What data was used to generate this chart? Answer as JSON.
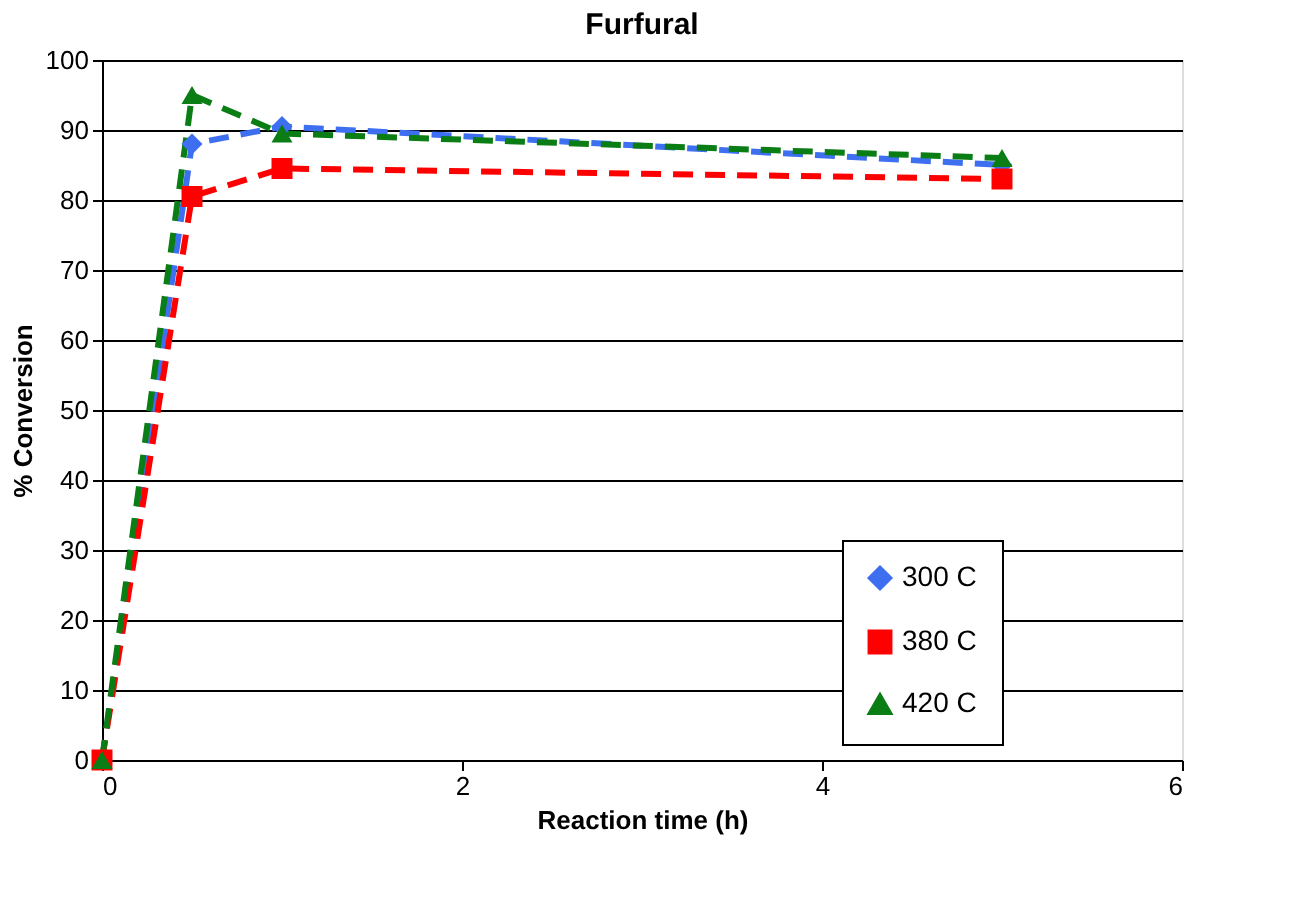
{
  "chart_data": {
    "type": "line",
    "title": "Furfural",
    "xlabel": "Reaction time (h)",
    "ylabel": "% Conversion",
    "x": [
      0,
      0.5,
      1,
      5
    ],
    "series": [
      {
        "name": "300 C",
        "color": "#3d6ff0",
        "values": [
          0,
          88,
          90.5,
          85
        ],
        "marker": "diamond"
      },
      {
        "name": "380 C",
        "color": "#ff0000",
        "values": [
          0,
          80.5,
          84.5,
          83
        ],
        "marker": "square"
      },
      {
        "name": "420 C",
        "color": "#0a7d14",
        "values": [
          0,
          95,
          89.5,
          86
        ],
        "marker": "triangle"
      }
    ],
    "xlim": [
      0,
      6
    ],
    "xticks": [
      0,
      2,
      4,
      6
    ],
    "ylim": [
      0,
      100
    ],
    "yticks": [
      0,
      10,
      20,
      30,
      40,
      50,
      60,
      70,
      80,
      90,
      100
    ],
    "grid": "y",
    "legend": "bottom right",
    "line_style": "dashed"
  }
}
